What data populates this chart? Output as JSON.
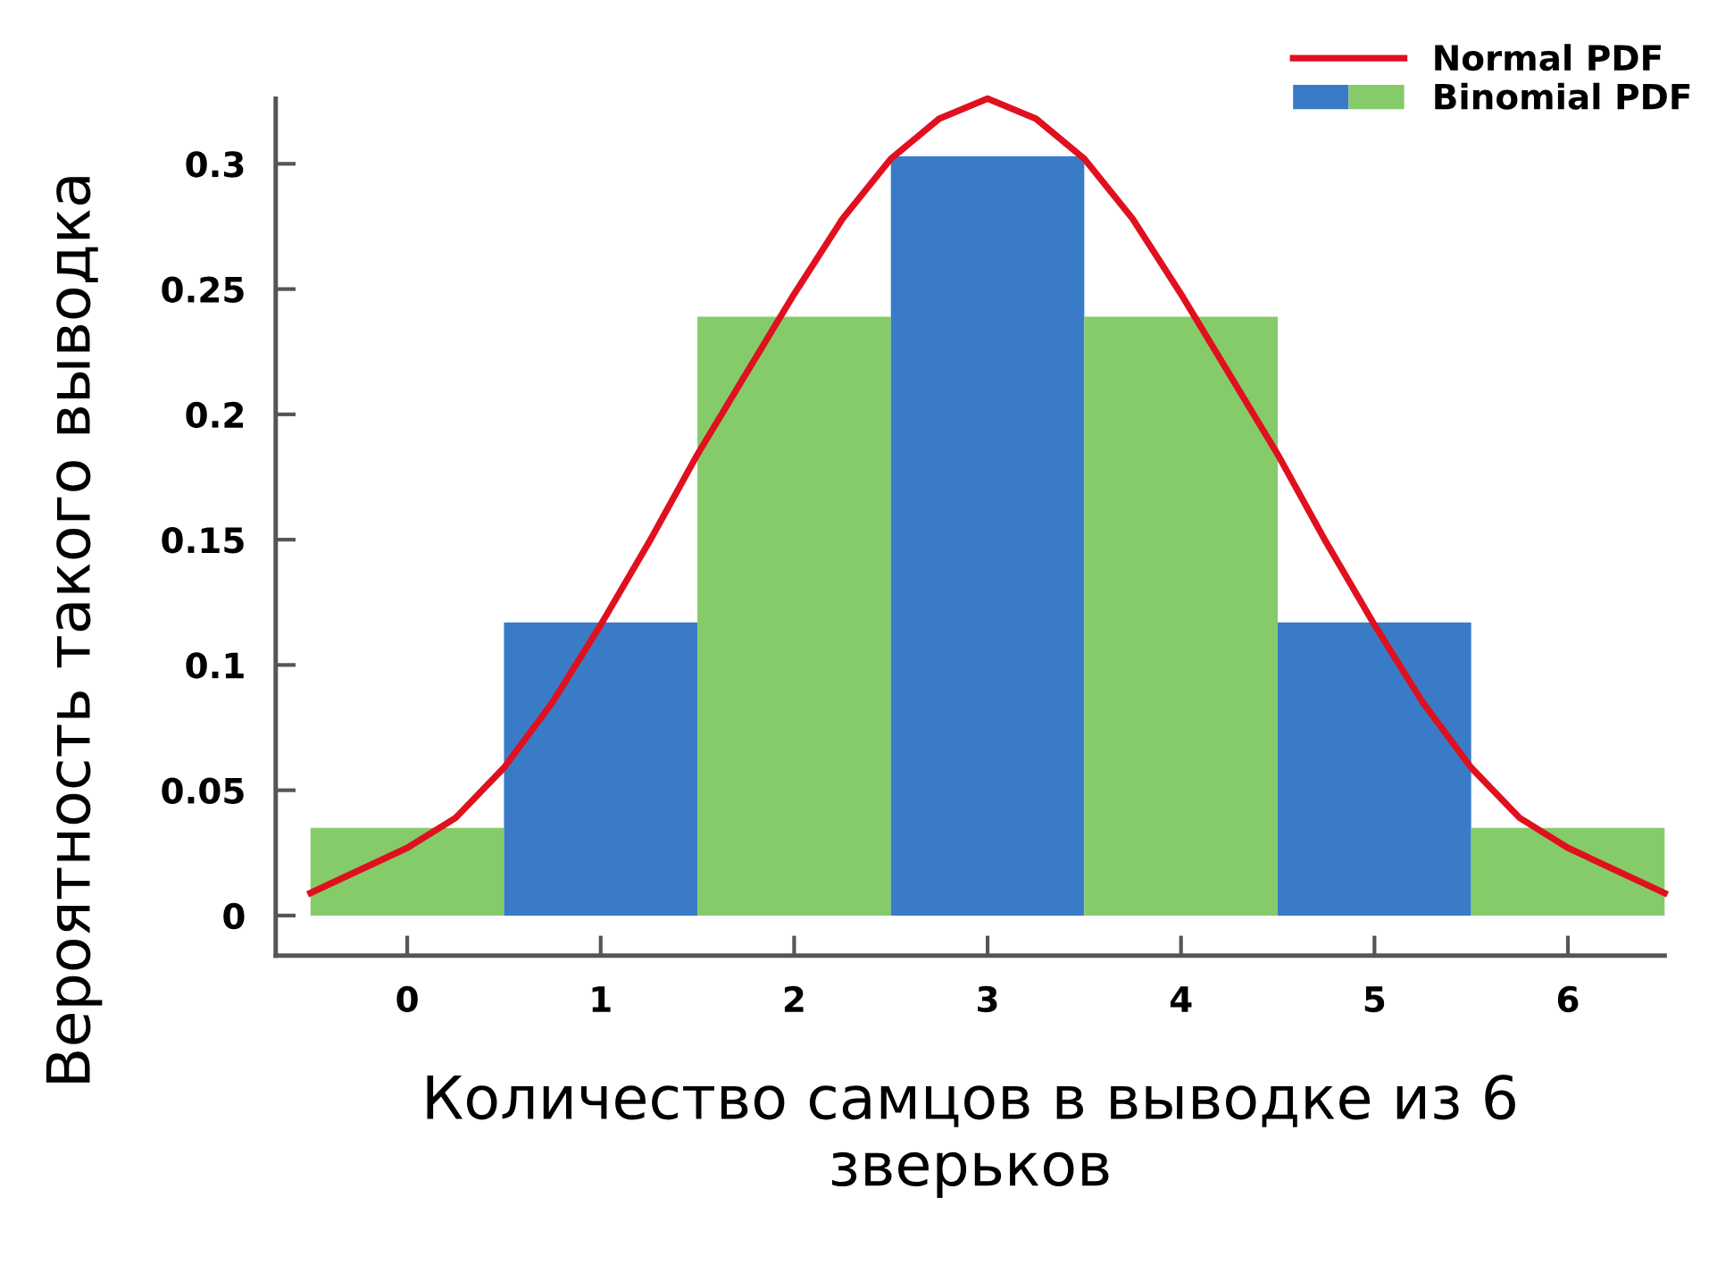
{
  "chart_data": {
    "type": "bar",
    "xlabel": "Количество самцов в выводке из 6\nзверьков",
    "ylabel": "Вероятность такого выводка",
    "x": [
      0,
      1,
      2,
      3,
      4,
      5,
      6
    ],
    "xlim": [
      -0.68,
      6.5
    ],
    "ylim": [
      -0.016,
      0.326
    ],
    "xticks": [
      0,
      1,
      2,
      3,
      4,
      5,
      6
    ],
    "yticks": [
      0,
      0.05,
      0.1,
      0.15,
      0.2,
      0.25,
      0.3
    ],
    "legend": "top right",
    "grid": false,
    "series": [
      {
        "name": "Binomial PDF",
        "colors": [
          "#86cb6a",
          "#3a7bc8",
          "#86cb6a",
          "#3a7bc8",
          "#86cb6a",
          "#3a7bc8",
          "#86cb6a"
        ],
        "values": [
          0.035,
          0.117,
          0.239,
          0.303,
          0.239,
          0.117,
          0.035
        ]
      },
      {
        "name": "Normal PDF",
        "type": "line",
        "color": "#e0101e",
        "marker": "none",
        "line_style": "solid",
        "x": [
          -0.5,
          0,
          0.25,
          0.5,
          0.75,
          1,
          1.25,
          1.5,
          1.75,
          2,
          2.25,
          2.5,
          2.75,
          3,
          3.25,
          3.5,
          3.75,
          4,
          4.25,
          4.5,
          4.75,
          5,
          5.25,
          5.5,
          5.75,
          6,
          6.5
        ],
        "values": [
          0.009,
          0.027,
          0.039,
          0.059,
          0.085,
          0.116,
          0.149,
          0.184,
          0.216,
          0.248,
          0.278,
          0.302,
          0.318,
          0.326,
          0.318,
          0.302,
          0.278,
          0.248,
          0.216,
          0.184,
          0.149,
          0.116,
          0.085,
          0.059,
          0.039,
          0.027,
          0.009
        ]
      }
    ]
  }
}
